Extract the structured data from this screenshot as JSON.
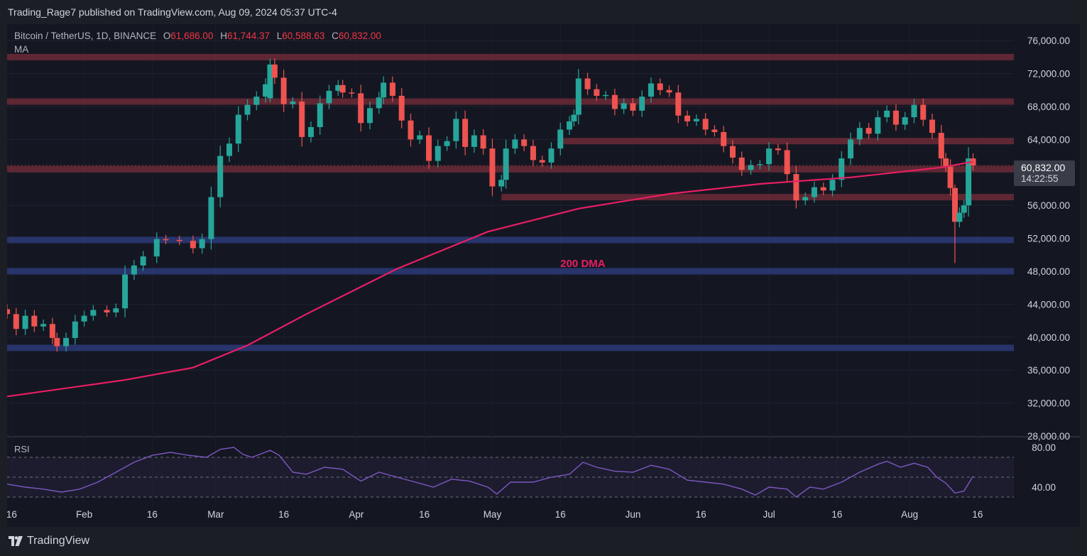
{
  "header": {
    "published": "Trading_Rage7 published on TradingView.com, Aug 09, 2024 05:37 UTC-4"
  },
  "legend": {
    "symbol": "Bitcoin / TetherUS, 1D, BINANCE",
    "o_label": "O",
    "o_value": "61,686.00",
    "h_label": "H",
    "h_value": "61,744.37",
    "l_label": "L",
    "l_value": "60,588.63",
    "c_label": "C",
    "c_value": "60,832.00",
    "indicator": "MA"
  },
  "price_badge": {
    "price": "60,832.00",
    "countdown": "14:22:55"
  },
  "footer": {
    "brand": "TradingView"
  },
  "rsi_label": "RSI",
  "colors": {
    "up": "#26a69a",
    "down": "#ef5350",
    "ma": "#e91e63",
    "resistance_zone": "#6b2a36",
    "support_zone": "#2b3a78",
    "rsi_line": "#7e57c2"
  },
  "chart_data": {
    "type": "candlestick",
    "title": "",
    "ylim": [
      28000,
      78000
    ],
    "y_ticks": [
      76000,
      72000,
      68000,
      64000,
      60000,
      56000,
      52000,
      48000,
      44000,
      40000,
      36000,
      32000,
      28000
    ],
    "y_tick_labels": [
      "76,000.00",
      "72,000.00",
      "68,000.00",
      "64,000.00",
      "60,000.00",
      "56,000.00",
      "52,000.00",
      "48,000.00",
      "44,000.00",
      "40,000.00",
      "36,000.00",
      "32,000.00",
      "28,000.00"
    ],
    "x_ticks": [
      "16",
      "Feb",
      "16",
      "Mar",
      "16",
      "Apr",
      "16",
      "May",
      "16",
      "Jun",
      "16",
      "Jul",
      "16",
      "Aug",
      "16"
    ],
    "x_tick_days": [
      15,
      31,
      46,
      60,
      75,
      91,
      106,
      121,
      136,
      152,
      167,
      182,
      197,
      213,
      228
    ],
    "x_domain_days": [
      14,
      236
    ],
    "close_series": [
      [
        14,
        42800
      ],
      [
        16,
        41000
      ],
      [
        18,
        42600
      ],
      [
        20,
        41300
      ],
      [
        22,
        41600
      ],
      [
        24,
        39900
      ],
      [
        25,
        38900
      ],
      [
        27,
        39900
      ],
      [
        29,
        41900
      ],
      [
        31,
        42600
      ],
      [
        33,
        43300
      ],
      [
        36,
        43000
      ],
      [
        38,
        43500
      ],
      [
        40,
        47600
      ],
      [
        42,
        48700
      ],
      [
        44,
        49800
      ],
      [
        47,
        51900
      ],
      [
        49,
        51800
      ],
      [
        52,
        51700
      ],
      [
        55,
        50800
      ],
      [
        57,
        51900
      ],
      [
        59,
        57000
      ],
      [
        61,
        62000
      ],
      [
        63,
        63500
      ],
      [
        65,
        67000
      ],
      [
        67,
        68200
      ],
      [
        69,
        69200
      ],
      [
        71,
        70700
      ],
      [
        72,
        73100
      ],
      [
        73,
        71500
      ],
      [
        75,
        68300
      ],
      [
        77,
        68600
      ],
      [
        79,
        64300
      ],
      [
        81,
        65500
      ],
      [
        83,
        68400
      ],
      [
        85,
        69900
      ],
      [
        87,
        70600
      ],
      [
        88,
        69700
      ],
      [
        90,
        69600
      ],
      [
        92,
        66000
      ],
      [
        94,
        67800
      ],
      [
        96,
        69100
      ],
      [
        97,
        70900
      ],
      [
        99,
        69300
      ],
      [
        101,
        66300
      ],
      [
        103,
        64000
      ],
      [
        105,
        64500
      ],
      [
        107,
        61400
      ],
      [
        109,
        63200
      ],
      [
        111,
        63800
      ],
      [
        113,
        66500
      ],
      [
        115,
        63100
      ],
      [
        117,
        64500
      ],
      [
        119,
        62900
      ],
      [
        121,
        58300
      ],
      [
        123,
        59100
      ],
      [
        124,
        62900
      ],
      [
        126,
        64000
      ],
      [
        128,
        63200
      ],
      [
        130,
        61500
      ],
      [
        132,
        61200
      ],
      [
        134,
        62900
      ],
      [
        136,
        65200
      ],
      [
        138,
        66200
      ],
      [
        139,
        67000
      ],
      [
        140,
        71400
      ],
      [
        142,
        70100
      ],
      [
        144,
        69300
      ],
      [
        146,
        69400
      ],
      [
        148,
        67700
      ],
      [
        150,
        68400
      ],
      [
        152,
        67500
      ],
      [
        154,
        69200
      ],
      [
        156,
        70800
      ],
      [
        158,
        70000
      ],
      [
        160,
        69700
      ],
      [
        162,
        66900
      ],
      [
        164,
        66200
      ],
      [
        166,
        66500
      ],
      [
        168,
        65200
      ],
      [
        170,
        64900
      ],
      [
        172,
        63200
      ],
      [
        174,
        61800
      ],
      [
        176,
        60300
      ],
      [
        178,
        60900
      ],
      [
        180,
        61000
      ],
      [
        182,
        62900
      ],
      [
        184,
        62700
      ],
      [
        186,
        59800
      ],
      [
        188,
        56600
      ],
      [
        190,
        57000
      ],
      [
        192,
        58200
      ],
      [
        194,
        57800
      ],
      [
        196,
        59100
      ],
      [
        198,
        61700
      ],
      [
        200,
        64000
      ],
      [
        202,
        65400
      ],
      [
        204,
        64700
      ],
      [
        206,
        66700
      ],
      [
        208,
        67500
      ],
      [
        210,
        65800
      ],
      [
        212,
        66700
      ],
      [
        214,
        68200
      ],
      [
        216,
        66400
      ],
      [
        218,
        64800
      ],
      [
        220,
        61700
      ],
      [
        221,
        60700
      ],
      [
        222,
        58100
      ],
      [
        223,
        54000
      ],
      [
        224,
        55100
      ],
      [
        225,
        56000
      ],
      [
        226,
        61700
      ],
      [
        227,
        60832
      ]
    ],
    "candle_highlights": [
      {
        "day": 72,
        "open": 69000,
        "high": 73800,
        "low": 68500,
        "close": 73100
      },
      {
        "day": 223,
        "open": 58100,
        "high": 58500,
        "low": 49000,
        "close": 54000
      }
    ],
    "ma_series": {
      "name": "200 DMA",
      "points": [
        [
          14,
          32800
        ],
        [
          40,
          34800
        ],
        [
          55,
          36300
        ],
        [
          67,
          39000
        ],
        [
          80,
          42800
        ],
        [
          100,
          48300
        ],
        [
          120,
          52800
        ],
        [
          140,
          55600
        ],
        [
          160,
          57400
        ],
        [
          180,
          58600
        ],
        [
          200,
          59400
        ],
        [
          220,
          60600
        ],
        [
          227,
          61300
        ]
      ]
    },
    "annotation": "200 DMA",
    "zones": [
      {
        "kind": "resistance",
        "value": 74000
      },
      {
        "kind": "resistance",
        "value": 68600
      },
      {
        "kind": "resistance",
        "value": 63800,
        "from_day": 136
      },
      {
        "kind": "resistance",
        "value": 60400
      },
      {
        "kind": "resistance",
        "value": 57000,
        "from_day": 123
      },
      {
        "kind": "support",
        "value": 51800
      },
      {
        "kind": "support",
        "value": 48000
      },
      {
        "kind": "support",
        "value": 38700
      }
    ],
    "rsi": {
      "ylim": [
        20,
        90
      ],
      "y_ticks": [
        80,
        40
      ],
      "y_tick_labels": [
        "80.00",
        "40.00"
      ],
      "levels": [
        70,
        50,
        30
      ],
      "points": [
        [
          14,
          43
        ],
        [
          18,
          40
        ],
        [
          22,
          38
        ],
        [
          26,
          35
        ],
        [
          30,
          38
        ],
        [
          34,
          45
        ],
        [
          38,
          55
        ],
        [
          42,
          65
        ],
        [
          46,
          72
        ],
        [
          50,
          75
        ],
        [
          54,
          72
        ],
        [
          58,
          70
        ],
        [
          61,
          78
        ],
        [
          64,
          80
        ],
        [
          66,
          73
        ],
        [
          68,
          70
        ],
        [
          72,
          77
        ],
        [
          74,
          72
        ],
        [
          77,
          55
        ],
        [
          80,
          53
        ],
        [
          84,
          60
        ],
        [
          88,
          58
        ],
        [
          92,
          46
        ],
        [
          96,
          55
        ],
        [
          100,
          50
        ],
        [
          104,
          45
        ],
        [
          108,
          40
        ],
        [
          112,
          48
        ],
        [
          116,
          46
        ],
        [
          120,
          40
        ],
        [
          122,
          33
        ],
        [
          125,
          45
        ],
        [
          130,
          45
        ],
        [
          134,
          50
        ],
        [
          138,
          53
        ],
        [
          141,
          65
        ],
        [
          144,
          60
        ],
        [
          148,
          56
        ],
        [
          152,
          55
        ],
        [
          156,
          62
        ],
        [
          160,
          58
        ],
        [
          164,
          47
        ],
        [
          168,
          45
        ],
        [
          172,
          43
        ],
        [
          176,
          38
        ],
        [
          179,
          32
        ],
        [
          182,
          40
        ],
        [
          186,
          38
        ],
        [
          188,
          30
        ],
        [
          191,
          40
        ],
        [
          194,
          38
        ],
        [
          198,
          45
        ],
        [
          202,
          55
        ],
        [
          206,
          63
        ],
        [
          208,
          66
        ],
        [
          211,
          60
        ],
        [
          214,
          64
        ],
        [
          217,
          60
        ],
        [
          219,
          50
        ],
        [
          221,
          44
        ],
        [
          223,
          34
        ],
        [
          225,
          36
        ],
        [
          227,
          51
        ]
      ]
    },
    "grid": true
  }
}
